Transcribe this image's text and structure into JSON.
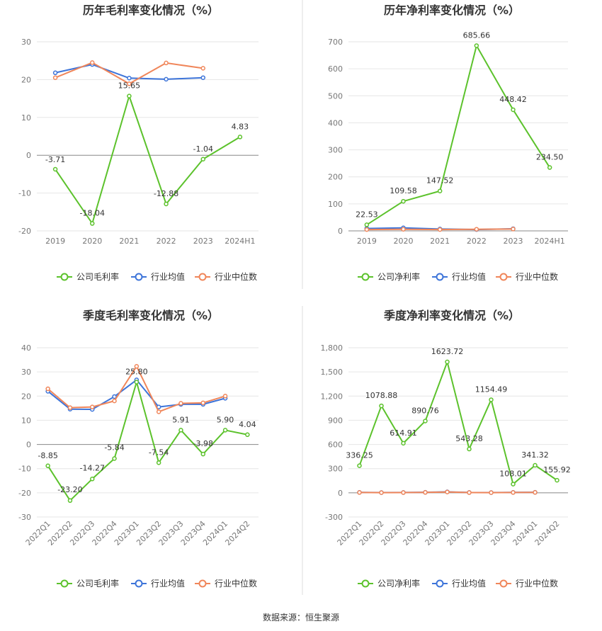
{
  "source_label": "数据来源：恒生聚源",
  "colors": {
    "company": "#5cc22c",
    "industry_avg": "#3d74d9",
    "industry_median": "#f0865a",
    "axis": "#888888",
    "grid": "#e6e6e6",
    "divider": "#dddddd"
  },
  "chart_data": [
    {
      "type": "line",
      "title": "历年毛利率变化情况（%）",
      "categories": [
        "2019",
        "2020",
        "2021",
        "2022",
        "2023",
        "2024H1"
      ],
      "ylim": [
        -20,
        30
      ],
      "yticks": [
        -20,
        -10,
        0,
        10,
        20,
        30
      ],
      "ytick_labels": [
        "-20",
        "-10",
        "0",
        "10",
        "20",
        "30"
      ],
      "rotate_x": false,
      "series": [
        {
          "name": "公司毛利率",
          "color_key": "company",
          "values": [
            -3.71,
            -18.04,
            15.65,
            -12.88,
            -1.04,
            4.83
          ],
          "labels": [
            "-3.71",
            "-18.04",
            "15.65",
            "-12.88",
            "-1.04",
            "4.83"
          ]
        },
        {
          "name": "行业均值",
          "color_key": "industry_avg",
          "values": [
            21.8,
            24.0,
            20.4,
            20.1,
            20.5,
            null
          ]
        },
        {
          "name": "行业中位数",
          "color_key": "industry_median",
          "values": [
            20.5,
            24.5,
            18.9,
            24.4,
            23.0,
            null
          ]
        }
      ]
    },
    {
      "type": "line",
      "title": "历年净利率变化情况（%）",
      "categories": [
        "2019",
        "2020",
        "2021",
        "2022",
        "2023",
        "2024H1"
      ],
      "ylim": [
        0,
        700
      ],
      "yticks": [
        0,
        100,
        200,
        300,
        400,
        500,
        600,
        700
      ],
      "ytick_labels": [
        "0",
        "100",
        "200",
        "300",
        "400",
        "500",
        "600",
        "700"
      ],
      "rotate_x": false,
      "series": [
        {
          "name": "公司净利率",
          "color_key": "company",
          "values": [
            22.53,
            109.58,
            147.52,
            685.66,
            448.42,
            234.5
          ],
          "labels": [
            "22.53",
            "109.58",
            "147.52",
            "685.66",
            "448.42",
            "234.50"
          ]
        },
        {
          "name": "行业均值",
          "color_key": "industry_avg",
          "values": [
            9,
            11,
            7,
            5,
            8,
            null
          ]
        },
        {
          "name": "行业中位数",
          "color_key": "industry_median",
          "values": [
            5,
            6,
            5,
            6,
            7,
            null
          ]
        }
      ]
    },
    {
      "type": "line",
      "title": "季度毛利率变化情况（%）",
      "categories": [
        "2022Q1",
        "2022Q2",
        "2022Q3",
        "2022Q4",
        "2023Q1",
        "2023Q2",
        "2023Q3",
        "2023Q4",
        "2024Q1",
        "2024Q2"
      ],
      "ylim": [
        -30,
        40
      ],
      "yticks": [
        -30,
        -20,
        -10,
        0,
        10,
        20,
        30,
        40
      ],
      "ytick_labels": [
        "-30",
        "-20",
        "-10",
        "0",
        "10",
        "20",
        "30",
        "40"
      ],
      "rotate_x": true,
      "series": [
        {
          "name": "公司毛利率",
          "color_key": "company",
          "values": [
            -8.85,
            -23.2,
            -14.27,
            -5.84,
            25.8,
            -7.54,
            5.91,
            -3.98,
            5.9,
            4.04
          ],
          "labels": [
            "-8.85",
            "-23.20",
            "-14.27",
            "-5.84",
            "25.80",
            "-7.54",
            "5.91",
            "-3.98",
            "5.90",
            "4.04"
          ]
        },
        {
          "name": "行业均值",
          "color_key": "industry_avg",
          "values": [
            22.0,
            14.6,
            14.5,
            19.8,
            26.7,
            15.5,
            16.6,
            16.6,
            19.1,
            null
          ]
        },
        {
          "name": "行业中位数",
          "color_key": "industry_median",
          "values": [
            23.0,
            15.2,
            15.5,
            18.0,
            32.3,
            13.5,
            17.0,
            17.2,
            20.0,
            null
          ]
        }
      ]
    },
    {
      "type": "line",
      "title": "季度净利率变化情况（%）",
      "categories": [
        "2022Q1",
        "2022Q2",
        "2022Q3",
        "2022Q4",
        "2023Q1",
        "2023Q2",
        "2023Q3",
        "2023Q4",
        "2024Q1",
        "2024Q2"
      ],
      "ylim": [
        -300,
        1800
      ],
      "yticks": [
        -300,
        0,
        300,
        600,
        900,
        1200,
        1500,
        1800
      ],
      "ytick_labels": [
        "-300",
        "0",
        "300",
        "600",
        "900",
        "1,200",
        "1,500",
        "1,800"
      ],
      "rotate_x": true,
      "series": [
        {
          "name": "公司净利率",
          "color_key": "company",
          "values": [
            336.25,
            1078.88,
            614.91,
            890.76,
            1623.72,
            543.28,
            1154.49,
            108.01,
            341.32,
            155.92
          ],
          "labels": [
            "336.25",
            "1078.88",
            "614.91",
            "890.76",
            "1623.72",
            "543.28",
            "1154.49",
            "108.01",
            "341.32",
            "155.92"
          ]
        },
        {
          "name": "行业均值",
          "color_key": "industry_avg",
          "values": [
            5,
            3,
            4,
            6,
            12,
            4,
            3,
            5,
            6,
            null
          ]
        },
        {
          "name": "行业中位数",
          "color_key": "industry_median",
          "values": [
            4,
            2,
            3,
            5,
            10,
            3,
            2,
            4,
            5,
            null
          ]
        }
      ]
    }
  ]
}
